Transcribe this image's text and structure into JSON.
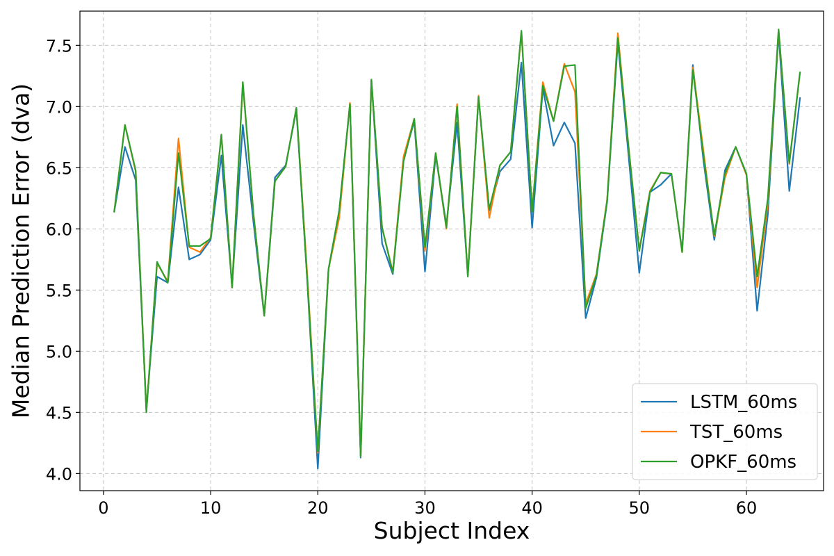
{
  "chart_data": {
    "type": "line",
    "title": "",
    "xlabel": "Subject Index",
    "ylabel": "Median Prediction Error (dva)",
    "xlim": [
      -2.2,
      67.2
    ],
    "ylim": [
      3.86,
      7.78
    ],
    "xticks": [
      0,
      10,
      20,
      30,
      40,
      50,
      60
    ],
    "yticks": [
      4.0,
      4.5,
      5.0,
      5.5,
      6.0,
      6.5,
      7.0,
      7.5
    ],
    "xtick_labels": [
      "0",
      "10",
      "20",
      "30",
      "40",
      "50",
      "60"
    ],
    "ytick_labels": [
      "4.0",
      "4.5",
      "5.0",
      "5.5",
      "6.0",
      "6.5",
      "7.0",
      "7.5"
    ],
    "grid": true,
    "legend_position": "lower-right",
    "x": [
      1,
      2,
      3,
      4,
      5,
      6,
      7,
      8,
      9,
      10,
      11,
      12,
      13,
      14,
      15,
      16,
      17,
      18,
      19,
      20,
      21,
      22,
      23,
      24,
      25,
      26,
      27,
      28,
      29,
      30,
      31,
      32,
      33,
      34,
      35,
      36,
      37,
      38,
      39,
      40,
      41,
      42,
      43,
      44,
      45,
      46,
      47,
      48,
      49,
      50,
      51,
      52,
      53,
      54,
      55,
      56,
      57,
      58,
      59,
      60,
      61,
      62,
      63,
      64,
      65
    ],
    "series": [
      {
        "name": "LSTM_60ms",
        "color": "#1f77b4",
        "values": [
          6.14,
          6.67,
          6.4,
          4.52,
          5.61,
          5.56,
          6.34,
          5.75,
          5.79,
          5.91,
          6.6,
          5.53,
          6.85,
          6.05,
          5.29,
          6.42,
          6.52,
          6.97,
          5.6,
          4.04,
          5.67,
          6.15,
          7.02,
          4.13,
          7.22,
          5.88,
          5.63,
          6.57,
          6.88,
          5.65,
          6.6,
          6.03,
          6.87,
          5.62,
          7.07,
          6.15,
          6.47,
          6.57,
          7.36,
          6.01,
          7.15,
          6.68,
          6.87,
          6.7,
          5.27,
          5.6,
          6.22,
          7.53,
          6.6,
          5.64,
          6.3,
          6.36,
          6.45,
          5.82,
          7.34,
          6.55,
          5.91,
          6.48,
          6.67,
          6.45,
          5.33,
          6.12,
          7.6,
          6.31,
          7.07
        ]
      },
      {
        "name": "TST_60ms",
        "color": "#ff7f0e",
        "values": [
          6.14,
          6.85,
          6.47,
          4.51,
          5.72,
          5.57,
          6.74,
          5.85,
          5.81,
          5.93,
          6.77,
          5.52,
          7.19,
          6.12,
          5.29,
          6.39,
          6.51,
          6.99,
          5.65,
          4.17,
          5.67,
          6.09,
          7.03,
          4.14,
          7.21,
          6.01,
          5.65,
          6.59,
          6.9,
          5.82,
          6.62,
          6.0,
          7.02,
          5.62,
          7.09,
          6.09,
          6.52,
          6.63,
          7.61,
          6.15,
          7.2,
          6.88,
          7.35,
          7.12,
          5.39,
          5.63,
          6.24,
          7.6,
          6.67,
          5.83,
          6.31,
          6.46,
          6.45,
          5.81,
          7.32,
          6.63,
          5.94,
          6.42,
          6.67,
          6.44,
          5.52,
          6.21,
          7.62,
          6.53,
          7.28
        ]
      },
      {
        "name": "OPKF_60ms",
        "color": "#2ca02c",
        "values": [
          6.14,
          6.85,
          6.48,
          4.5,
          5.73,
          5.56,
          6.62,
          5.86,
          5.86,
          5.92,
          6.77,
          5.52,
          7.2,
          6.12,
          5.29,
          6.39,
          6.51,
          6.99,
          5.6,
          4.18,
          5.67,
          6.15,
          7.02,
          4.14,
          7.22,
          6.01,
          5.64,
          6.55,
          6.9,
          5.85,
          6.62,
          6.01,
          7.0,
          5.61,
          7.08,
          6.16,
          6.52,
          6.63,
          7.62,
          6.14,
          7.17,
          6.88,
          7.33,
          7.34,
          5.35,
          5.62,
          6.23,
          7.56,
          6.67,
          5.82,
          6.3,
          6.46,
          6.45,
          5.81,
          7.3,
          6.59,
          5.95,
          6.45,
          6.67,
          6.45,
          5.61,
          6.25,
          7.63,
          6.54,
          7.28
        ]
      }
    ]
  }
}
